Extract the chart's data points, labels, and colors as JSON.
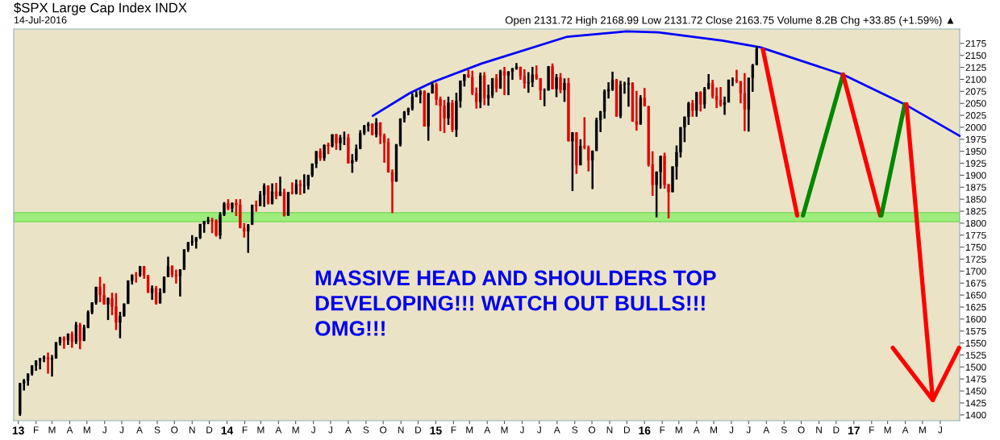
{
  "chart_data": {
    "type": "candlestick",
    "title": "$SPX Large Cap Index INDX",
    "subtitle": "14-Jul-2016",
    "annotations": [
      "Open 2131.72 High 2168.99 Low 2131.72 Close 2163.75 Volume 8.2B Chg +33.85 (+1.59%) ▲",
      "MASSIVE HEAD AND SHOULDERS TOP\nDEVELOPING!!! WATCH OUT BULLS!!!\nOMG!!!"
    ],
    "x": [
      "2013-01-04",
      "2013-01-11",
      "2013-01-18",
      "2013-01-25",
      "2013-02-01",
      "2013-02-08",
      "2013-02-15",
      "2013-02-22",
      "2013-03-01",
      "2013-03-08",
      "2013-03-15",
      "2013-03-22",
      "2013-03-29",
      "2013-04-05",
      "2013-04-12",
      "2013-04-19",
      "2013-04-26",
      "2013-05-03",
      "2013-05-10",
      "2013-05-17",
      "2013-05-24",
      "2013-05-31",
      "2013-06-07",
      "2013-06-14",
      "2013-06-21",
      "2013-06-28",
      "2013-07-05",
      "2013-07-12",
      "2013-07-19",
      "2013-07-26",
      "2013-08-02",
      "2013-08-09",
      "2013-08-16",
      "2013-08-23",
      "2013-08-30",
      "2013-09-06",
      "2013-09-13",
      "2013-09-20",
      "2013-09-27",
      "2013-10-04",
      "2013-10-11",
      "2013-10-18",
      "2013-10-25",
      "2013-11-01",
      "2013-11-08",
      "2013-11-15",
      "2013-11-22",
      "2013-11-29",
      "2013-12-06",
      "2013-12-13",
      "2013-12-20",
      "2013-12-27",
      "2014-01-03",
      "2014-01-10",
      "2014-01-17",
      "2014-01-24",
      "2014-01-31",
      "2014-02-07",
      "2014-02-14",
      "2014-02-21",
      "2014-02-28",
      "2014-03-07",
      "2014-03-14",
      "2014-03-21",
      "2014-03-28",
      "2014-04-04",
      "2014-04-11",
      "2014-04-18",
      "2014-04-25",
      "2014-05-02",
      "2014-05-09",
      "2014-05-16",
      "2014-05-23",
      "2014-05-30",
      "2014-06-06",
      "2014-06-13",
      "2014-06-20",
      "2014-06-27",
      "2014-07-04",
      "2014-07-11",
      "2014-07-18",
      "2014-07-25",
      "2014-08-01",
      "2014-08-08",
      "2014-08-15",
      "2014-08-22",
      "2014-08-29",
      "2014-09-05",
      "2014-09-12",
      "2014-09-19",
      "2014-09-26",
      "2014-10-03",
      "2014-10-10",
      "2014-10-17",
      "2014-10-24",
      "2014-10-31",
      "2014-11-07",
      "2014-11-14",
      "2014-11-21",
      "2014-11-28",
      "2014-12-05",
      "2014-12-12",
      "2014-12-19",
      "2014-12-26",
      "2015-01-02",
      "2015-01-09",
      "2015-01-16",
      "2015-01-23",
      "2015-01-30",
      "2015-02-06",
      "2015-02-13",
      "2015-02-20",
      "2015-02-27",
      "2015-03-06",
      "2015-03-13",
      "2015-03-20",
      "2015-03-27",
      "2015-04-03",
      "2015-04-10",
      "2015-04-17",
      "2015-04-24",
      "2015-05-01",
      "2015-05-08",
      "2015-05-15",
      "2015-05-22",
      "2015-05-29",
      "2015-06-05",
      "2015-06-12",
      "2015-06-19",
      "2015-06-26",
      "2015-07-03",
      "2015-07-10",
      "2015-07-17",
      "2015-07-24",
      "2015-07-31",
      "2015-08-07",
      "2015-08-14",
      "2015-08-21",
      "2015-08-28",
      "2015-09-04",
      "2015-09-11",
      "2015-09-18",
      "2015-09-25",
      "2015-10-02",
      "2015-10-09",
      "2015-10-16",
      "2015-10-23",
      "2015-10-30",
      "2015-11-06",
      "2015-11-13",
      "2015-11-20",
      "2015-11-27",
      "2015-12-04",
      "2015-12-11",
      "2015-12-18",
      "2015-12-25",
      "2016-01-01",
      "2016-01-08",
      "2016-01-15",
      "2016-01-22",
      "2016-01-29",
      "2016-02-05",
      "2016-02-12",
      "2016-02-19",
      "2016-02-26",
      "2016-03-04",
      "2016-03-11",
      "2016-03-18",
      "2016-03-25",
      "2016-04-01",
      "2016-04-08",
      "2016-04-15",
      "2016-04-22",
      "2016-04-29",
      "2016-05-06",
      "2016-05-13",
      "2016-05-20",
      "2016-05-27",
      "2016-06-03",
      "2016-06-10",
      "2016-06-17",
      "2016-06-24",
      "2016-07-01",
      "2016-07-08",
      "2016-07-15"
    ],
    "ohlc": [
      [
        1402,
        1467,
        1398,
        1466
      ],
      [
        1466,
        1475,
        1451,
        1472
      ],
      [
        1472,
        1486,
        1461,
        1486
      ],
      [
        1486,
        1503,
        1482,
        1503
      ],
      [
        1503,
        1514,
        1492,
        1513
      ],
      [
        1513,
        1518,
        1495,
        1518
      ],
      [
        1518,
        1524,
        1510,
        1520
      ],
      [
        1520,
        1530,
        1486,
        1516
      ],
      [
        1516,
        1525,
        1480,
        1518
      ],
      [
        1518,
        1552,
        1518,
        1551
      ],
      [
        1551,
        1563,
        1545,
        1561
      ],
      [
        1561,
        1564,
        1538,
        1556
      ],
      [
        1556,
        1570,
        1546,
        1569
      ],
      [
        1569,
        1574,
        1540,
        1553
      ],
      [
        1553,
        1594,
        1548,
        1588
      ],
      [
        1588,
        1592,
        1537,
        1555
      ],
      [
        1555,
        1588,
        1554,
        1582
      ],
      [
        1582,
        1618,
        1581,
        1614
      ],
      [
        1614,
        1635,
        1610,
        1634
      ],
      [
        1634,
        1667,
        1630,
        1667
      ],
      [
        1667,
        1688,
        1635,
        1650
      ],
      [
        1650,
        1674,
        1630,
        1631
      ],
      [
        1631,
        1645,
        1598,
        1643
      ],
      [
        1643,
        1655,
        1608,
        1626
      ],
      [
        1626,
        1654,
        1577,
        1593
      ],
      [
        1593,
        1615,
        1560,
        1606
      ],
      [
        1606,
        1632,
        1605,
        1632
      ],
      [
        1632,
        1680,
        1632,
        1680
      ],
      [
        1680,
        1693,
        1672,
        1692
      ],
      [
        1692,
        1698,
        1676,
        1691
      ],
      [
        1691,
        1710,
        1688,
        1710
      ],
      [
        1710,
        1710,
        1684,
        1691
      ],
      [
        1691,
        1692,
        1655,
        1655
      ],
      [
        1655,
        1670,
        1640,
        1664
      ],
      [
        1664,
        1669,
        1630,
        1633
      ],
      [
        1633,
        1664,
        1633,
        1655
      ],
      [
        1655,
        1688,
        1655,
        1688
      ],
      [
        1688,
        1730,
        1688,
        1710
      ],
      [
        1710,
        1712,
        1687,
        1692
      ],
      [
        1692,
        1703,
        1674,
        1690
      ],
      [
        1690,
        1704,
        1647,
        1703
      ],
      [
        1703,
        1745,
        1703,
        1745
      ],
      [
        1745,
        1760,
        1740,
        1760
      ],
      [
        1760,
        1775,
        1753,
        1762
      ],
      [
        1762,
        1771,
        1747,
        1770
      ],
      [
        1770,
        1798,
        1767,
        1798
      ],
      [
        1798,
        1804,
        1780,
        1804
      ],
      [
        1804,
        1813,
        1798,
        1806
      ],
      [
        1806,
        1811,
        1779,
        1805
      ],
      [
        1805,
        1808,
        1772,
        1775
      ],
      [
        1775,
        1823,
        1767,
        1818
      ],
      [
        1818,
        1844,
        1815,
        1841
      ],
      [
        1841,
        1850,
        1827,
        1831
      ],
      [
        1831,
        1843,
        1823,
        1842
      ],
      [
        1842,
        1850,
        1815,
        1838
      ],
      [
        1838,
        1850,
        1790,
        1790
      ],
      [
        1790,
        1800,
        1770,
        1783
      ],
      [
        1783,
        1798,
        1738,
        1797
      ],
      [
        1797,
        1838,
        1797,
        1838
      ],
      [
        1838,
        1847,
        1824,
        1836
      ],
      [
        1836,
        1867,
        1836,
        1859
      ],
      [
        1859,
        1883,
        1834,
        1878
      ],
      [
        1878,
        1879,
        1839,
        1841
      ],
      [
        1841,
        1883,
        1839,
        1866
      ],
      [
        1866,
        1884,
        1850,
        1857
      ],
      [
        1857,
        1897,
        1857,
        1865
      ],
      [
        1865,
        1872,
        1814,
        1816
      ],
      [
        1816,
        1865,
        1816,
        1864
      ],
      [
        1864,
        1885,
        1860,
        1863
      ],
      [
        1863,
        1891,
        1860,
        1881
      ],
      [
        1881,
        1890,
        1859,
        1878
      ],
      [
        1878,
        1902,
        1862,
        1878
      ],
      [
        1878,
        1901,
        1870,
        1900
      ],
      [
        1900,
        1924,
        1896,
        1924
      ],
      [
        1924,
        1950,
        1915,
        1950
      ],
      [
        1950,
        1956,
        1930,
        1936
      ],
      [
        1936,
        1964,
        1930,
        1963
      ],
      [
        1963,
        1968,
        1944,
        1961
      ],
      [
        1961,
        1985,
        1958,
        1985
      ],
      [
        1985,
        1986,
        1953,
        1967
      ],
      [
        1967,
        1984,
        1952,
        1978
      ],
      [
        1978,
        1991,
        1963,
        1978
      ],
      [
        1978,
        1986,
        1925,
        1925
      ],
      [
        1925,
        1944,
        1905,
        1931
      ],
      [
        1931,
        1964,
        1928,
        1955
      ],
      [
        1955,
        1994,
        1955,
        1988
      ],
      [
        1988,
        2005,
        1984,
        2003
      ],
      [
        2003,
        2011,
        1991,
        2007
      ],
      [
        2007,
        2008,
        1983,
        1985
      ],
      [
        1985,
        2019,
        1979,
        2010
      ],
      [
        2010,
        2010,
        1965,
        1982
      ],
      [
        1982,
        1987,
        1926,
        1968
      ],
      [
        1968,
        1977,
        1906,
        1906
      ],
      [
        1906,
        1912,
        1821,
        1887
      ],
      [
        1887,
        1965,
        1887,
        1964
      ],
      [
        1964,
        2018,
        1960,
        2018
      ],
      [
        2018,
        2034,
        2010,
        2032
      ],
      [
        2032,
        2041,
        2025,
        2039
      ],
      [
        2039,
        2071,
        2035,
        2064
      ],
      [
        2064,
        2075,
        2063,
        2068
      ],
      [
        2068,
        2078,
        2050,
        2075
      ],
      [
        2075,
        2077,
        2002,
        2002
      ],
      [
        2002,
        2071,
        1972,
        2071
      ],
      [
        2071,
        2094,
        2071,
        2089
      ],
      [
        2089,
        2093,
        2046,
        2058
      ],
      [
        2058,
        2064,
        1992,
        2045
      ],
      [
        2045,
        2057,
        1988,
        2019
      ],
      [
        2019,
        2064,
        2005,
        2051
      ],
      [
        2051,
        2057,
        1990,
        1995
      ],
      [
        1995,
        2072,
        1980,
        2055
      ],
      [
        2055,
        2097,
        2041,
        2097
      ],
      [
        2097,
        2111,
        2085,
        2110
      ],
      [
        2110,
        2120,
        2103,
        2105
      ],
      [
        2105,
        2118,
        2067,
        2071
      ],
      [
        2071,
        2083,
        2039,
        2053
      ],
      [
        2053,
        2114,
        2040,
        2108
      ],
      [
        2108,
        2115,
        2046,
        2061
      ],
      [
        2061,
        2089,
        2045,
        2067
      ],
      [
        2067,
        2102,
        2061,
        2102
      ],
      [
        2102,
        2111,
        2073,
        2081
      ],
      [
        2081,
        2120,
        2081,
        2117
      ],
      [
        2117,
        2126,
        2067,
        2108
      ],
      [
        2108,
        2117,
        2067,
        2116
      ],
      [
        2116,
        2123,
        2099,
        2123
      ],
      [
        2123,
        2134,
        2120,
        2126
      ],
      [
        2126,
        2126,
        2099,
        2107
      ],
      [
        2107,
        2121,
        2081,
        2092
      ],
      [
        2092,
        2115,
        2072,
        2094
      ],
      [
        2094,
        2126,
        2084,
        2110
      ],
      [
        2110,
        2129,
        2099,
        2102
      ],
      [
        2102,
        2102,
        2057,
        2077
      ],
      [
        2077,
        2081,
        2044,
        2077
      ],
      [
        2077,
        2127,
        2077,
        2127
      ],
      [
        2127,
        2133,
        2079,
        2080
      ],
      [
        2080,
        2111,
        2063,
        2104
      ],
      [
        2104,
        2113,
        2071,
        2078
      ],
      [
        2078,
        2102,
        2053,
        2092
      ],
      [
        2092,
        2103,
        1971,
        1971
      ],
      [
        1971,
        1990,
        1867,
        1989
      ],
      [
        1989,
        1990,
        1903,
        1921
      ],
      [
        1921,
        1975,
        1921,
        1961
      ],
      [
        1961,
        2021,
        1954,
        1958
      ],
      [
        1958,
        1962,
        1908,
        1931
      ],
      [
        1931,
        1951,
        1871,
        1951
      ],
      [
        1951,
        2020,
        1951,
        2015
      ],
      [
        2015,
        2034,
        1990,
        2033
      ],
      [
        2033,
        2079,
        2018,
        2075
      ],
      [
        2075,
        2094,
        2060,
        2079
      ],
      [
        2079,
        2116,
        2076,
        2099
      ],
      [
        2099,
        2101,
        2022,
        2023
      ],
      [
        2023,
        2097,
        2019,
        2089
      ],
      [
        2089,
        2095,
        2070,
        2090
      ],
      [
        2090,
        2104,
        2043,
        2092
      ],
      [
        2092,
        2094,
        2012,
        2012
      ],
      [
        2012,
        2076,
        1993,
        2006
      ],
      [
        2006,
        2067,
        2006,
        2061
      ],
      [
        2061,
        2082,
        2044,
        2044
      ],
      [
        2044,
        2044,
        1918,
        1922
      ],
      [
        1922,
        1950,
        1857,
        1880
      ],
      [
        1880,
        1908,
        1812,
        1907
      ],
      [
        1907,
        1940,
        1872,
        1940
      ],
      [
        1940,
        1947,
        1872,
        1880
      ],
      [
        1880,
        1882,
        1810,
        1865
      ],
      [
        1865,
        1918,
        1865,
        1918
      ],
      [
        1918,
        1962,
        1891,
        1948
      ],
      [
        1948,
        2000,
        1937,
        2000
      ],
      [
        2000,
        2022,
        1969,
        2022
      ],
      [
        2022,
        2053,
        2005,
        2050
      ],
      [
        2050,
        2057,
        2022,
        2035
      ],
      [
        2035,
        2074,
        2022,
        2073
      ],
      [
        2073,
        2075,
        2033,
        2048
      ],
      [
        2048,
        2084,
        2039,
        2081
      ],
      [
        2081,
        2111,
        2079,
        2092
      ],
      [
        2092,
        2099,
        2060,
        2065
      ],
      [
        2065,
        2083,
        2040,
        2057
      ],
      [
        2057,
        2084,
        2043,
        2047
      ],
      [
        2047,
        2064,
        2026,
        2052
      ],
      [
        2052,
        2099,
        2052,
        2099
      ],
      [
        2099,
        2104,
        2086,
        2099
      ],
      [
        2099,
        2120,
        2092,
        2096
      ],
      [
        2096,
        2096,
        2050,
        2071
      ],
      [
        2071,
        2113,
        1992,
        2037
      ],
      [
        2037,
        2103,
        1991,
        2103
      ],
      [
        2103,
        2132,
        2074,
        2130
      ],
      [
        2130,
        2169,
        2130,
        2164
      ]
    ],
    "colors": [
      "#000000",
      "#000000",
      "#000000",
      "#000000",
      "#000000",
      "#000000",
      "#000000",
      "#e00000",
      "#000000",
      "#000000",
      "#000000",
      "#e00000",
      "#000000",
      "#e00000",
      "#000000",
      "#e00000",
      "#000000",
      "#000000",
      "#000000",
      "#000000",
      "#e00000",
      "#e00000",
      "#000000",
      "#e00000",
      "#e00000",
      "#000000",
      "#000000",
      "#000000",
      "#000000",
      "#e00000",
      "#000000",
      "#e00000",
      "#e00000",
      "#000000",
      "#e00000",
      "#000000",
      "#000000",
      "#000000",
      "#e00000",
      "#e00000",
      "#000000",
      "#000000",
      "#000000",
      "#000000",
      "#000000",
      "#000000",
      "#000000",
      "#000000",
      "#e00000",
      "#e00000",
      "#000000",
      "#000000",
      "#e00000",
      "#000000",
      "#e00000",
      "#e00000",
      "#e00000",
      "#000000",
      "#000000",
      "#e00000",
      "#000000",
      "#000000",
      "#e00000",
      "#000000",
      "#e00000",
      "#000000",
      "#e00000",
      "#000000",
      "#e00000",
      "#000000",
      "#e00000",
      "#000000",
      "#000000",
      "#000000",
      "#000000",
      "#e00000",
      "#000000",
      "#e00000",
      "#000000",
      "#e00000",
      "#000000",
      "#000000",
      "#e00000",
      "#000000",
      "#000000",
      "#000000",
      "#000000",
      "#000000",
      "#e00000",
      "#000000",
      "#e00000",
      "#e00000",
      "#e00000",
      "#e00000",
      "#000000",
      "#000000",
      "#000000",
      "#000000",
      "#000000",
      "#000000",
      "#000000",
      "#e00000",
      "#000000",
      "#000000",
      "#e00000",
      "#e00000",
      "#e00000",
      "#000000",
      "#e00000",
      "#000000",
      "#000000",
      "#000000",
      "#e00000",
      "#e00000",
      "#e00000",
      "#000000",
      "#e00000",
      "#000000",
      "#000000",
      "#e00000",
      "#000000",
      "#e00000",
      "#000000",
      "#000000",
      "#000000",
      "#e00000",
      "#e00000",
      "#000000",
      "#000000",
      "#e00000",
      "#e00000",
      "#000000",
      "#000000",
      "#e00000",
      "#000000",
      "#e00000",
      "#000000",
      "#e00000",
      "#000000",
      "#e00000",
      "#000000",
      "#e00000",
      "#e00000",
      "#000000",
      "#000000",
      "#000000",
      "#000000",
      "#000000",
      "#000000",
      "#e00000",
      "#000000",
      "#000000",
      "#000000",
      "#e00000",
      "#e00000",
      "#000000",
      "#e00000",
      "#e00000",
      "#e00000",
      "#000000",
      "#000000",
      "#e00000",
      "#e00000",
      "#000000",
      "#000000",
      "#000000",
      "#000000",
      "#000000",
      "#e00000",
      "#000000",
      "#e00000",
      "#000000",
      "#000000",
      "#e00000",
      "#e00000",
      "#e00000",
      "#000000",
      "#000000",
      "#000000",
      "#e00000",
      "#e00000",
      "#e00000",
      "#000000",
      "#000000",
      "#000000"
    ],
    "series": [
      {
        "type": "line",
        "color": "#0000ff",
        "x": [
          "2014-09-13",
          "2014-11-16",
          "2014-12-28",
          "2015-03-22",
          "2015-08-19",
          "2015-11-30",
          "2016-01-25",
          "2016-05-16",
          "2016-07-21",
          "2016-12-13",
          "2017-03-31",
          "2017-07-05"
        ],
        "values": [
          2024,
          2071,
          2095,
          2133,
          2189,
          2200,
          2198,
          2181,
          2167,
          2110,
          2048,
          1982
        ]
      },
      {
        "type": "line",
        "color": "#ff0000",
        "x": [
          "2016-07-26",
          "2016-09-24"
        ],
        "values": [
          2162,
          1816
        ]
      },
      {
        "type": "line",
        "color": "#008800",
        "x": [
          "2016-10-04",
          "2016-12-13"
        ],
        "values": [
          1816,
          2110
        ]
      },
      {
        "type": "line",
        "color": "#ff0000",
        "x": [
          "2016-12-13",
          "2017-02-16"
        ],
        "values": [
          2110,
          1816
        ]
      },
      {
        "type": "line",
        "color": "#008800",
        "x": [
          "2017-02-18",
          "2017-03-31"
        ],
        "values": [
          1816,
          2048
        ]
      },
      {
        "type": "line",
        "color": "#ff0000",
        "x": [
          "2017-04-03",
          "2017-05-19"
        ],
        "values": [
          2048,
          1431
        ]
      },
      {
        "type": "line",
        "color": "#ff0000",
        "x": [
          "2017-03-10",
          "2017-05-19",
          "2017-07-04"
        ],
        "values": [
          1540,
          1431,
          1540
        ]
      }
    ],
    "bands": [
      {
        "axis": "y",
        "from": 1803,
        "to": 1822,
        "color": "#90ee70"
      }
    ],
    "xlim": [
      "2012-12-24",
      "2017-07-05"
    ],
    "xticks": [
      {
        "value": "2013-01-01",
        "label": "13"
      },
      {
        "value": "2013-02-01",
        "label": "F"
      },
      {
        "value": "2013-03-01",
        "label": "M"
      },
      {
        "value": "2013-04-01",
        "label": "A"
      },
      {
        "value": "2013-05-01",
        "label": "M"
      },
      {
        "value": "2013-06-01",
        "label": "J"
      },
      {
        "value": "2013-07-01",
        "label": "J"
      },
      {
        "value": "2013-08-01",
        "label": "A"
      },
      {
        "value": "2013-09-01",
        "label": "S"
      },
      {
        "value": "2013-10-01",
        "label": "O"
      },
      {
        "value": "2013-11-01",
        "label": "N"
      },
      {
        "value": "2013-12-01",
        "label": "D"
      },
      {
        "value": "2014-01-01",
        "label": "14"
      },
      {
        "value": "2014-02-01",
        "label": "F"
      },
      {
        "value": "2014-03-01",
        "label": "M"
      },
      {
        "value": "2014-04-01",
        "label": "A"
      },
      {
        "value": "2014-05-01",
        "label": "M"
      },
      {
        "value": "2014-06-01",
        "label": "J"
      },
      {
        "value": "2014-07-01",
        "label": "J"
      },
      {
        "value": "2014-08-01",
        "label": "A"
      },
      {
        "value": "2014-09-01",
        "label": "S"
      },
      {
        "value": "2014-10-01",
        "label": "O"
      },
      {
        "value": "2014-11-01",
        "label": "N"
      },
      {
        "value": "2014-12-01",
        "label": "D"
      },
      {
        "value": "2015-01-01",
        "label": "15"
      },
      {
        "value": "2015-02-01",
        "label": "F"
      },
      {
        "value": "2015-03-01",
        "label": "M"
      },
      {
        "value": "2015-04-01",
        "label": "A"
      },
      {
        "value": "2015-05-01",
        "label": "M"
      },
      {
        "value": "2015-06-01",
        "label": "J"
      },
      {
        "value": "2015-07-01",
        "label": "J"
      },
      {
        "value": "2015-08-01",
        "label": "A"
      },
      {
        "value": "2015-09-01",
        "label": "S"
      },
      {
        "value": "2015-10-01",
        "label": "O"
      },
      {
        "value": "2015-11-01",
        "label": "N"
      },
      {
        "value": "2015-12-01",
        "label": "D"
      },
      {
        "value": "2016-01-01",
        "label": "16"
      },
      {
        "value": "2016-02-01",
        "label": "F"
      },
      {
        "value": "2016-03-01",
        "label": "M"
      },
      {
        "value": "2016-04-01",
        "label": "A"
      },
      {
        "value": "2016-05-01",
        "label": "M"
      },
      {
        "value": "2016-06-01",
        "label": "J"
      },
      {
        "value": "2016-07-01",
        "label": "J"
      },
      {
        "value": "2016-08-01",
        "label": "A"
      },
      {
        "value": "2016-09-01",
        "label": "S"
      },
      {
        "value": "2016-10-01",
        "label": "O"
      },
      {
        "value": "2016-11-01",
        "label": "N"
      },
      {
        "value": "2016-12-01",
        "label": "D"
      },
      {
        "value": "2017-01-01",
        "label": "17"
      },
      {
        "value": "2017-02-01",
        "label": "F"
      },
      {
        "value": "2017-03-01",
        "label": "M"
      },
      {
        "value": "2017-04-01",
        "label": "A"
      },
      {
        "value": "2017-05-01",
        "label": "M"
      },
      {
        "value": "2017-06-01",
        "label": "J"
      }
    ],
    "ylim": [
      1388,
      2205
    ],
    "yticks": [
      1400,
      1425,
      1450,
      1475,
      1500,
      1525,
      1550,
      1575,
      1600,
      1625,
      1650,
      1675,
      1700,
      1725,
      1750,
      1775,
      1800,
      1825,
      1850,
      1875,
      1900,
      1925,
      1950,
      1975,
      2000,
      2025,
      2050,
      2075,
      2100,
      2125,
      2150,
      2175
    ],
    "grid": false,
    "legend": false
  }
}
